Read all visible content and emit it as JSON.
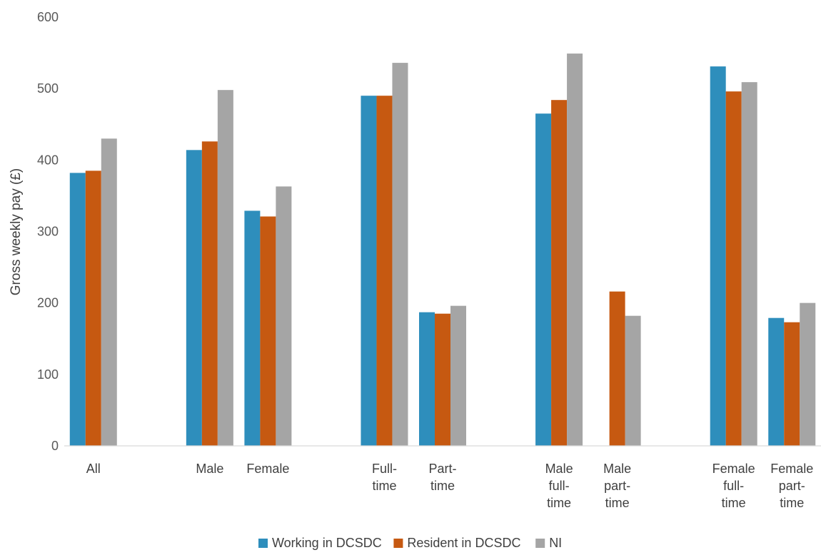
{
  "chart_data": {
    "type": "bar",
    "title": "",
    "xlabel": "",
    "ylabel": "Gross weekly pay (£)",
    "ylim": [
      0,
      600
    ],
    "yticks": [
      0,
      100,
      200,
      300,
      400,
      500,
      600
    ],
    "grid": false,
    "legend_position": "bottom",
    "categories": [
      {
        "label": "All",
        "group": 0
      },
      {
        "label": "Male",
        "group": 1
      },
      {
        "label": "Female",
        "group": 1
      },
      {
        "label": "Full-\ntime",
        "group": 2
      },
      {
        "label": "Part-\ntime",
        "group": 2
      },
      {
        "label": "Male\nfull-\ntime",
        "group": 3
      },
      {
        "label": "Male\npart-\ntime",
        "group": 3
      },
      {
        "label": "Female\nfull-\ntime",
        "group": 4
      },
      {
        "label": "Female\npart-\ntime",
        "group": 4
      }
    ],
    "series": [
      {
        "name": "Working in DCSDC",
        "color": "#2E8EBC",
        "values": [
          382,
          414,
          329,
          490,
          187,
          465,
          null,
          531,
          179
        ]
      },
      {
        "name": "Resident in DCSDC",
        "color": "#C65911",
        "values": [
          385,
          426,
          321,
          490,
          185,
          484,
          216,
          496,
          173
        ]
      },
      {
        "name": "NI",
        "color": "#A5A5A5",
        "values": [
          430,
          498,
          363,
          536,
          196,
          549,
          182,
          509,
          200
        ]
      }
    ]
  }
}
